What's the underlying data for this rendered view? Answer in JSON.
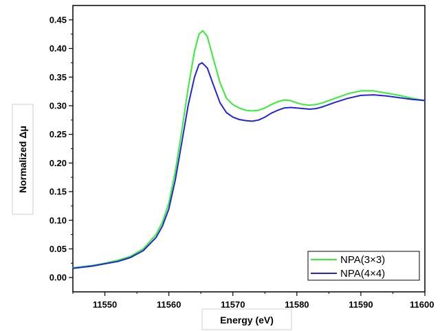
{
  "chart_data": {
    "type": "line",
    "title": "",
    "xlabel": "Energy (eV)",
    "ylabel": "Normalized Δμ",
    "xlim": [
      11545,
      11600
    ],
    "ylim": [
      -0.025,
      0.475
    ],
    "xticks": [
      11550,
      11560,
      11570,
      11580,
      11590,
      11600
    ],
    "yticks": [
      0.0,
      0.05,
      0.1,
      0.15,
      0.2,
      0.25,
      0.3,
      0.35,
      0.4,
      0.45
    ],
    "ytick_labels": [
      "0.00",
      "0.05",
      "0.10",
      "0.15",
      "0.20",
      "0.25",
      "0.30",
      "0.35",
      "0.40",
      "0.45"
    ],
    "legend_position": "bottom-right",
    "grid": false,
    "series": [
      {
        "name": "NPA(3×3)",
        "color": "#33ee33",
        "points": [
          [
            11545,
            0.017
          ],
          [
            11548,
            0.021
          ],
          [
            11550,
            0.025
          ],
          [
            11552,
            0.03
          ],
          [
            11554,
            0.037
          ],
          [
            11556,
            0.05
          ],
          [
            11558,
            0.075
          ],
          [
            11559,
            0.097
          ],
          [
            11560,
            0.13
          ],
          [
            11561,
            0.185
          ],
          [
            11562,
            0.255
          ],
          [
            11563,
            0.33
          ],
          [
            11564,
            0.395
          ],
          [
            11564.7,
            0.425
          ],
          [
            11565.3,
            0.431
          ],
          [
            11566,
            0.421
          ],
          [
            11567,
            0.38
          ],
          [
            11568,
            0.34
          ],
          [
            11569,
            0.313
          ],
          [
            11570,
            0.302
          ],
          [
            11571,
            0.296
          ],
          [
            11572,
            0.292
          ],
          [
            11573,
            0.291
          ],
          [
            11574,
            0.292
          ],
          [
            11575,
            0.296
          ],
          [
            11576,
            0.302
          ],
          [
            11577,
            0.307
          ],
          [
            11578,
            0.31
          ],
          [
            11579,
            0.309
          ],
          [
            11580,
            0.305
          ],
          [
            11581,
            0.302
          ],
          [
            11582,
            0.301
          ],
          [
            11583,
            0.302
          ],
          [
            11584,
            0.305
          ],
          [
            11586,
            0.313
          ],
          [
            11588,
            0.321
          ],
          [
            11590,
            0.326
          ],
          [
            11592,
            0.326
          ],
          [
            11594,
            0.322
          ],
          [
            11596,
            0.318
          ],
          [
            11598,
            0.313
          ],
          [
            11600,
            0.309
          ]
        ]
      },
      {
        "name": "NPA(4×4)",
        "color": "#2222dd",
        "points": [
          [
            11545,
            0.016
          ],
          [
            11548,
            0.02
          ],
          [
            11550,
            0.024
          ],
          [
            11552,
            0.028
          ],
          [
            11554,
            0.035
          ],
          [
            11556,
            0.047
          ],
          [
            11558,
            0.07
          ],
          [
            11559,
            0.09
          ],
          [
            11560,
            0.12
          ],
          [
            11561,
            0.17
          ],
          [
            11562,
            0.235
          ],
          [
            11563,
            0.3
          ],
          [
            11564,
            0.35
          ],
          [
            11564.7,
            0.372
          ],
          [
            11565.2,
            0.375
          ],
          [
            11566,
            0.366
          ],
          [
            11567,
            0.335
          ],
          [
            11568,
            0.305
          ],
          [
            11569,
            0.288
          ],
          [
            11570,
            0.28
          ],
          [
            11571,
            0.276
          ],
          [
            11572,
            0.274
          ],
          [
            11573,
            0.273
          ],
          [
            11574,
            0.275
          ],
          [
            11575,
            0.28
          ],
          [
            11576,
            0.287
          ],
          [
            11577,
            0.292
          ],
          [
            11578,
            0.296
          ],
          [
            11579,
            0.297
          ],
          [
            11580,
            0.296
          ],
          [
            11581,
            0.295
          ],
          [
            11582,
            0.294
          ],
          [
            11583,
            0.295
          ],
          [
            11584,
            0.298
          ],
          [
            11586,
            0.306
          ],
          [
            11588,
            0.313
          ],
          [
            11590,
            0.318
          ],
          [
            11592,
            0.319
          ],
          [
            11594,
            0.317
          ],
          [
            11596,
            0.314
          ],
          [
            11598,
            0.311
          ],
          [
            11600,
            0.309
          ]
        ]
      }
    ]
  }
}
